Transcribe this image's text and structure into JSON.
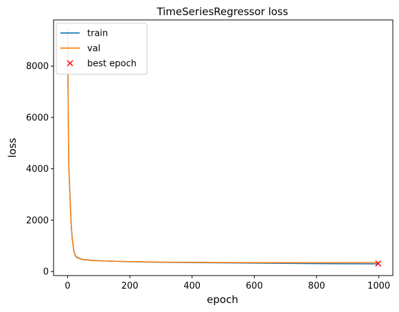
{
  "chart_data": {
    "type": "line",
    "title": "TimeSeriesRegressor loss",
    "xlabel": "epoch",
    "ylabel": "loss",
    "xlim": [
      -45,
      1045
    ],
    "ylim": [
      -160,
      9800
    ],
    "x_ticks": [
      0,
      200,
      400,
      600,
      800,
      1000
    ],
    "x_tick_labels": [
      "0",
      "200",
      "400",
      "600",
      "800",
      "1000"
    ],
    "y_ticks": [
      0,
      2000,
      4000,
      6000,
      8000
    ],
    "y_tick_labels": [
      "0",
      "2000",
      "4000",
      "6000",
      "8000"
    ],
    "grid": false,
    "legend": {
      "position": "upper-left"
    },
    "series": [
      {
        "name": "train",
        "color": "#1f77b4",
        "marker": "line",
        "x": [
          0,
          1,
          2,
          3,
          4,
          5,
          6,
          8,
          10,
          12,
          15,
          20,
          25,
          30,
          40,
          50,
          75,
          100,
          150,
          200,
          250,
          300,
          400,
          500,
          600,
          700,
          800,
          900,
          1000
        ],
        "y": [
          9500,
          8200,
          6500,
          5200,
          4200,
          3800,
          3500,
          2900,
          2300,
          1800,
          1300,
          800,
          620,
          560,
          500,
          470,
          440,
          420,
          400,
          380,
          370,
          360,
          345,
          335,
          325,
          315,
          305,
          300,
          295
        ]
      },
      {
        "name": "val",
        "color": "#ff7f0e",
        "marker": "line",
        "x": [
          0,
          1,
          2,
          3,
          4,
          5,
          6,
          8,
          10,
          12,
          15,
          20,
          25,
          30,
          40,
          50,
          75,
          100,
          150,
          200,
          250,
          300,
          400,
          500,
          600,
          700,
          800,
          900,
          1000
        ],
        "y": [
          9200,
          7900,
          6300,
          5100,
          4100,
          3700,
          3400,
          2800,
          2200,
          1750,
          1250,
          780,
          600,
          540,
          490,
          460,
          430,
          415,
          395,
          385,
          375,
          365,
          355,
          350,
          345,
          345,
          345,
          345,
          345
        ]
      },
      {
        "name": "best epoch",
        "color": "#ff0000",
        "marker": "x",
        "x": [
          998
        ],
        "y": [
          310
        ]
      }
    ]
  }
}
